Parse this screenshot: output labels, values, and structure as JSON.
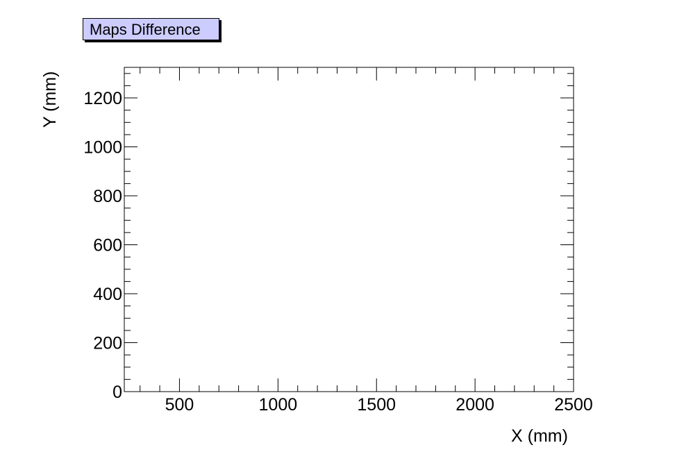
{
  "chart_data": {
    "type": "scatter",
    "title": "Maps Difference",
    "xlabel": "X (mm)",
    "ylabel": "Y (mm)",
    "xlim": [
      220,
      2500
    ],
    "ylim": [
      0,
      1325
    ],
    "x_ticks": [
      500,
      1000,
      1500,
      2000,
      2500
    ],
    "y_ticks": [
      0,
      200,
      400,
      600,
      800,
      1000,
      1200
    ],
    "x_minor_step": 100,
    "y_minor_step": 50,
    "grid": false,
    "series": [
      {
        "values": []
      }
    ]
  }
}
